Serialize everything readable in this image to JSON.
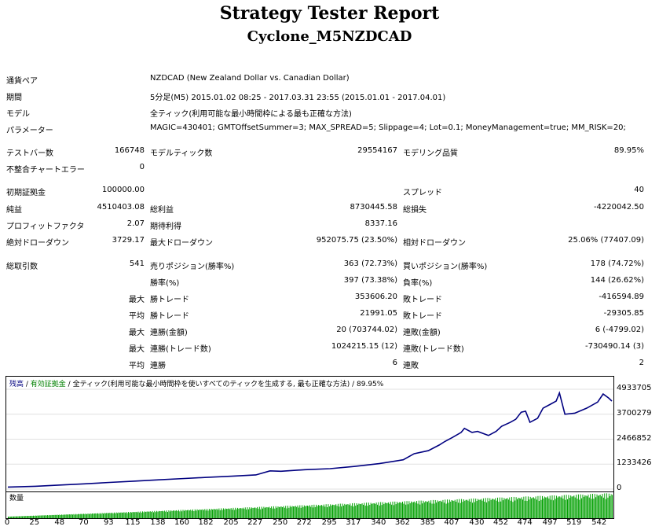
{
  "header": {
    "title": "Strategy Tester Report",
    "subtitle": "Cyclone_M5NZDCAD"
  },
  "info": [
    {
      "label": "通貨ペア",
      "value": "NZDCAD (New Zealand Dollar vs. Canadian Dollar)"
    },
    {
      "label": "期間",
      "value": "5分足(M5) 2015.01.02 08:25 - 2017.03.31 23:55 (2015.01.01 - 2017.04.01)"
    },
    {
      "label": "モデル",
      "value": "全ティック(利用可能な最小時間枠による最も正確な方法)"
    },
    {
      "label": "パラメーター",
      "value": "MAGIC=430401; GMTOffsetSummer=3; MAX_SPREAD=5; Slippage=4; Lot=0.1; MoneyManagement=true; MM_RISK=20;"
    }
  ],
  "stats": {
    "bars_label": "テストバー数",
    "bars": "166748",
    "ticks_label": "モデルティック数",
    "ticks": "29554167",
    "quality_label": "モデリング品質",
    "quality": "89.95%",
    "mismatch_label": "不整合チャートエラー",
    "mismatch": "0",
    "deposit_label": "初期証拠金",
    "deposit": "100000.00",
    "spread_label": "スプレッド",
    "spread": "40",
    "net_label": "純益",
    "net": "4510403.08",
    "gross_profit_label": "総利益",
    "gross_profit": "8730445.58",
    "gross_loss_label": "総損失",
    "gross_loss": "-4220042.50",
    "pf_label": "プロフィットファクタ",
    "pf": "2.07",
    "expected_label": "期待利得",
    "expected": "8337.16",
    "abs_dd_label": "絶対ドローダウン",
    "abs_dd": "3729.17",
    "max_dd_label": "最大ドローダウン",
    "max_dd": "952075.75 (23.50%)",
    "rel_dd_label": "相対ドローダウン",
    "rel_dd": "25.06% (77407.09)",
    "total_label": "総取引数",
    "total": "541",
    "short_label": "売りポジション(勝率%)",
    "short": "363 (72.73%)",
    "long_label": "買いポジション(勝率%)",
    "long": "178 (74.72%)",
    "win_label": "勝率(%)",
    "win": "397 (73.38%)",
    "loss_label": "負率(%)",
    "loss": "144 (26.62%)",
    "max_label": "最大",
    "avg_label": "平均",
    "largest_win_label": "勝トレード",
    "largest_win": "353606.20",
    "largest_loss_label": "敗トレード",
    "largest_loss": "-416594.89",
    "avg_win_label": "勝トレード",
    "avg_win": "21991.05",
    "avg_loss_label": "敗トレード",
    "avg_loss": "-29305.85",
    "cons_win_label": "連勝(金額)",
    "cons_win": "20 (703744.02)",
    "cons_loss_label": "連敗(金額)",
    "cons_loss": "6 (-4799.02)",
    "cons_profit_label": "連勝(トレード数)",
    "cons_profit": "1024215.15 (12)",
    "cons_lossamt_label": "連敗(トレード数)",
    "cons_lossamt": "-730490.14 (3)",
    "avg_cons_win_label": "連勝",
    "avg_cons_win": "6",
    "avg_cons_loss_label": "連敗",
    "avg_cons_loss": "2"
  },
  "chart_legend": {
    "balance": "残高",
    "sep1": " / ",
    "equity": "有効証拠金",
    "sep2": " / ",
    "model": "全ティック(利用可能な最小時間枠を使いすべてのティックを生成する, 最も正確な方法)",
    "sep3": " / ",
    "quality": "89.95%"
  },
  "volume_label": "数量",
  "colors": {
    "balance": "#000080",
    "equity": "#008000",
    "volume": "#00a000"
  },
  "chart_data": {
    "type": "line",
    "x_ticks": [
      "0",
      "25",
      "48",
      "70",
      "93",
      "115",
      "138",
      "160",
      "182",
      "205",
      "227",
      "250",
      "272",
      "295",
      "317",
      "340",
      "362",
      "385",
      "407",
      "430",
      "452",
      "474",
      "497",
      "519",
      "542"
    ],
    "y_ticks": [
      "4933705",
      "3700279",
      "2466852",
      "1233426",
      "0"
    ],
    "ylim": [
      0,
      4933705
    ],
    "xlim": [
      0,
      553
    ],
    "series": [
      {
        "values": [
          [
            0,
            100000
          ],
          [
            25,
            140000
          ],
          [
            48,
            200000
          ],
          [
            70,
            260000
          ],
          [
            93,
            330000
          ],
          [
            115,
            390000
          ],
          [
            138,
            460000
          ],
          [
            160,
            520000
          ],
          [
            182,
            580000
          ],
          [
            205,
            640000
          ],
          [
            227,
            700000
          ],
          [
            240,
            900000
          ],
          [
            250,
            880000
          ],
          [
            272,
            960000
          ],
          [
            295,
            1010000
          ],
          [
            317,
            1120000
          ],
          [
            340,
            1260000
          ],
          [
            362,
            1450000
          ],
          [
            372,
            1750000
          ],
          [
            385,
            1900000
          ],
          [
            395,
            2180000
          ],
          [
            400,
            2350000
          ],
          [
            407,
            2550000
          ],
          [
            415,
            2800000
          ],
          [
            418,
            3000000
          ],
          [
            425,
            2800000
          ],
          [
            430,
            2850000
          ],
          [
            440,
            2650000
          ],
          [
            447,
            2850000
          ],
          [
            452,
            3100000
          ],
          [
            460,
            3300000
          ],
          [
            465,
            3450000
          ],
          [
            470,
            3800000
          ],
          [
            474,
            3850000
          ],
          [
            478,
            3300000
          ],
          [
            485,
            3500000
          ],
          [
            490,
            4000000
          ],
          [
            497,
            4200000
          ],
          [
            502,
            4350000
          ],
          [
            505,
            4750000
          ],
          [
            510,
            3700000
          ],
          [
            519,
            3750000
          ],
          [
            530,
            4000000
          ],
          [
            540,
            4300000
          ],
          [
            545,
            4700000
          ],
          [
            550,
            4500000
          ],
          [
            553,
            4350000
          ]
        ]
      }
    ]
  }
}
